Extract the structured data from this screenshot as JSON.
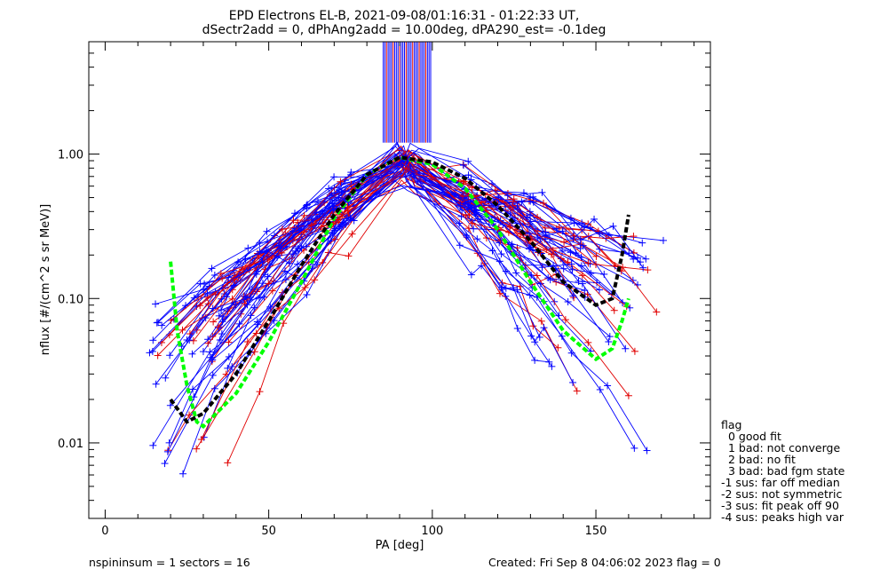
{
  "chart_data": {
    "type": "line",
    "title_line1": "EPD Electrons EL-B, 2021-09-08/01:16:31 - 01:22:33 UT,",
    "title_line2": "dSectr2add = 0, dPhAng2add = 10.00deg, dPA290_est=  -0.1deg",
    "xlabel": "PA [deg]",
    "ylabel": "nflux [#/(cm^2 s sr MeV)]",
    "xlim": [
      -5,
      185
    ],
    "ylim": [
      0.003,
      6
    ],
    "yscale": "log",
    "x_ticks": [
      0,
      50,
      100,
      150
    ],
    "x_tick_labels": [
      "0",
      "50",
      "100",
      "150"
    ],
    "y_ticks": [
      0.01,
      0.1,
      1.0
    ],
    "y_tick_labels": [
      "0.01",
      "0.10",
      "1.00"
    ],
    "colors": {
      "blue": "#0000ff",
      "red": "#e00000",
      "green": "#00ff00",
      "black": "#000000"
    },
    "fit_black": {
      "x": [
        20,
        25,
        30,
        40,
        50,
        60,
        70,
        80,
        90,
        100,
        110,
        120,
        130,
        140,
        150,
        155,
        158,
        160
      ],
      "y": [
        0.02,
        0.014,
        0.016,
        0.03,
        0.07,
        0.17,
        0.38,
        0.72,
        0.95,
        0.88,
        0.68,
        0.44,
        0.25,
        0.13,
        0.09,
        0.1,
        0.2,
        0.38
      ]
    },
    "fit_green": {
      "x": [
        20,
        22,
        25,
        28,
        30,
        40,
        50,
        60,
        70,
        80,
        90,
        100,
        110,
        120,
        130,
        140,
        150,
        155,
        158,
        160
      ],
      "y": [
        0.18,
        0.06,
        0.025,
        0.014,
        0.013,
        0.022,
        0.05,
        0.13,
        0.36,
        0.72,
        0.95,
        0.85,
        0.58,
        0.3,
        0.13,
        0.06,
        0.038,
        0.045,
        0.07,
        0.1
      ]
    },
    "flag_legend": {
      "title": "flag",
      "items": [
        "0 good fit",
        "1 bad: not converge",
        "2 bad: no fit",
        "3 bad: bad fgm state",
        "-1 sus: far off median",
        "-2 sus: not symmetric",
        "-3 sus: fit peak off 90",
        "-4 sus: peaks high var"
      ]
    }
  },
  "footer": {
    "left": "nspininsum =  1  sectors = 16",
    "right": "Created: Fri Sep  8 04:06:02 2023   flag = 0"
  }
}
